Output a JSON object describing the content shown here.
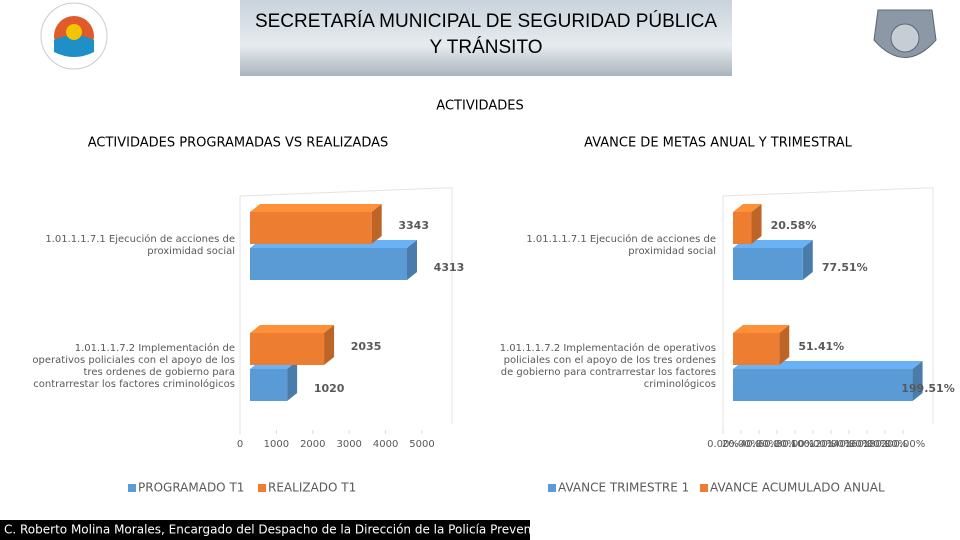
{
  "header": {
    "title_line1": "SECRETARÍA MUNICIPAL DE SEGURIDAD PÚBLICA",
    "title_line2": "Y TRÁNSITO"
  },
  "heading": "ACTIVIDADES",
  "chart_data": [
    {
      "type": "bar",
      "orientation": "horizontal",
      "title": "ACTIVIDADES PROGRAMADAS VS REALIZADAS",
      "categories": [
        "1.01.1.1.7.1  Ejecución de acciones de proximidad social",
        "1.01.1.1.7.2 Implementación de operativos policiales con el apoyo de los tres ordenes de gobierno para contrarrestar los factores criminológicos"
      ],
      "series": [
        {
          "name": "PROGRAMADO T1",
          "color": "#5b9bd5",
          "values": [
            4313,
            1020
          ]
        },
        {
          "name": "REALIZADO T1",
          "color": "#ed7d31",
          "values": [
            3343,
            2035
          ]
        }
      ],
      "xlim": [
        0,
        5000
      ],
      "xticks": [
        0,
        1000,
        2000,
        3000,
        4000,
        5000
      ],
      "legend": "bottom"
    },
    {
      "type": "bar",
      "orientation": "horizontal",
      "title": "AVANCE DE METAS ANUAL Y TRIMESTRAL",
      "categories": [
        "1.01.1.1.7.1  Ejecución de acciones de proximidad social",
        "1.01.1.1.7.2 Implementación de operativos policiales con el apoyo de los tres ordenes de gobierno para contrarrestar los factores criminológicos"
      ],
      "series": [
        {
          "name": "AVANCE TRIMESTRE 1",
          "color": "#5b9bd5",
          "values": [
            77.51,
            199.51
          ],
          "value_labels": [
            "77.51%",
            "199.51%"
          ]
        },
        {
          "name": "AVANCE ACUMULADO ANUAL",
          "color": "#ed7d31",
          "values": [
            20.58,
            51.41
          ],
          "value_labels": [
            "20.58%",
            "51.41%"
          ]
        }
      ],
      "xlim": [
        0,
        200
      ],
      "xticks": [
        {
          "value": 0,
          "label": "0.00%"
        },
        {
          "value": 20,
          "label": "20.00%"
        },
        {
          "value": 40,
          "label": "40.00%"
        },
        {
          "value": 60,
          "label": "60.00%"
        },
        {
          "value": 80,
          "label": "80.00%"
        },
        {
          "value": 100,
          "label": "100.00%"
        },
        {
          "value": 120,
          "label": "120.00%"
        },
        {
          "value": 140,
          "label": "140.00%"
        },
        {
          "value": 160,
          "label": "160.00%"
        },
        {
          "value": 180,
          "label": "180.00%"
        },
        {
          "value": 200,
          "label": "200.00%"
        }
      ],
      "legend": "bottom"
    }
  ],
  "footer": "C. Roberto Molina Morales, Encargado del Despacho de la Dirección de la Policía Preventiva."
}
